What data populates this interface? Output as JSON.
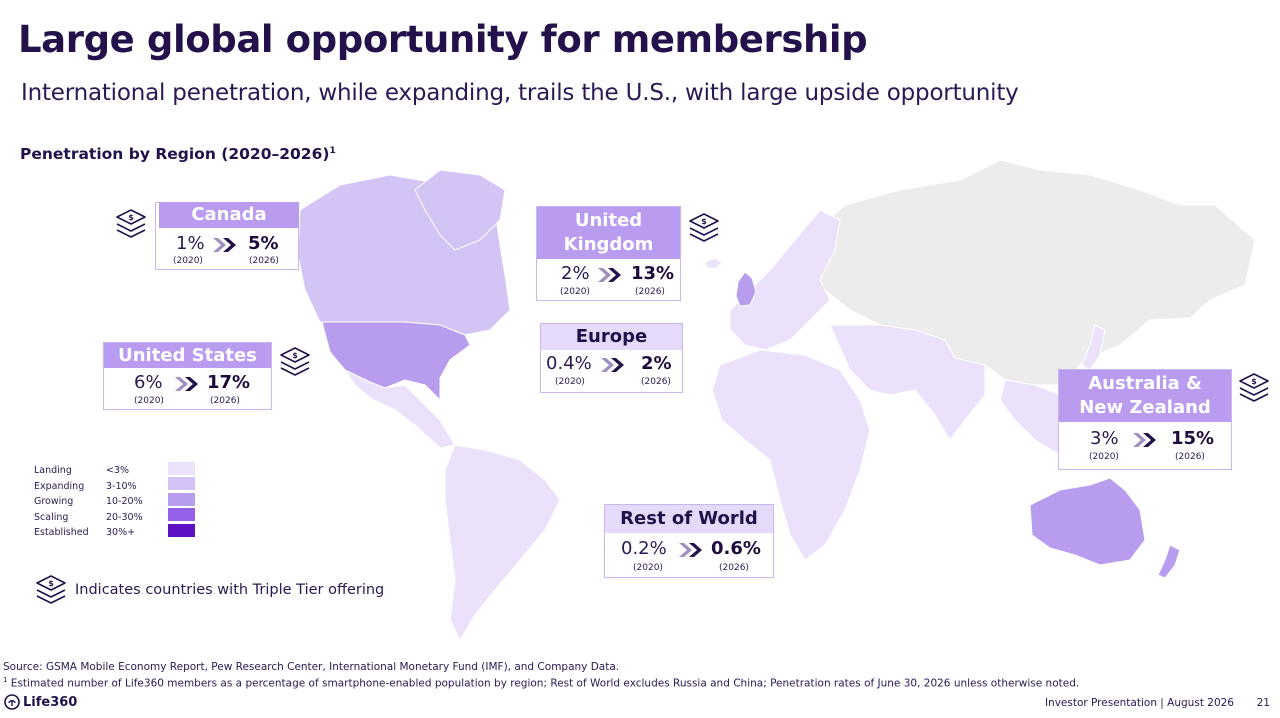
{
  "header": {
    "title": "Large global opportunity for membership",
    "subtitle": "International penetration, while expanding, trails the U.S., with large upside opportunity",
    "section_title": "Penetration by Region (2020–2026)",
    "section_title_sup": "1"
  },
  "regions": {
    "canada": {
      "name": "Canada",
      "start": "1%",
      "end": "5%",
      "start_year": "(2020)",
      "end_year": "(2026)"
    },
    "united_states": {
      "name": "United States",
      "start": "6%",
      "end": "17%",
      "start_year": "(2020)",
      "end_year": "(2026)"
    },
    "united_kingdom": {
      "name_line1": "United",
      "name_line2": "Kingdom",
      "start": "2%",
      "end": "13%",
      "start_year": "(2020)",
      "end_year": "(2026)"
    },
    "europe": {
      "name": "Europe",
      "start": "0.4%",
      "end": "2%",
      "start_year": "(2020)",
      "end_year": "(2026)"
    },
    "australia_nz": {
      "name_line1": "Australia &",
      "name_line2": "New Zealand",
      "start": "3%",
      "end": "15%",
      "start_year": "(2020)",
      "end_year": "(2026)"
    },
    "rest_of_world": {
      "name": "Rest of World",
      "start": "0.2%",
      "end": "0.6%",
      "start_year": "(2020)",
      "end_year": "(2026)"
    }
  },
  "legend": {
    "items": [
      {
        "label": "Landing",
        "range": "<3%",
        "color": "#ebe1fb"
      },
      {
        "label": "Expanding",
        "range": "3-10%",
        "color": "#d4c3f5"
      },
      {
        "label": "Growing",
        "range": "10-20%",
        "color": "#b89cee"
      },
      {
        "label": "Scaling",
        "range": "20-30%",
        "color": "#9561e8"
      },
      {
        "label": "Established",
        "range": "30%+",
        "color": "#5e10c4"
      }
    ],
    "triple_tier_note": "Indicates countries with Triple Tier offering",
    "triple_tier_icon": "stacked-layers-dollar-icon"
  },
  "footer": {
    "source": "Source: GSMA Mobile Economy Report, Pew Research Center, International Monetary Fund (IMF), and Company Data.",
    "footnote_marker": "1",
    "footnote": " Estimated number of Life360 members as a percentage of smartphone-enabled population by region; Rest of World excludes Russia and China; Penetration rates of June 30, 2026 unless otherwise noted.",
    "brand": "Life360",
    "presentation": "Investor Presentation  |  August 2026",
    "page_number": "21"
  },
  "colors": {
    "header_fill": "#b99cf0",
    "not_included": "#ececec",
    "landing": "#ebe1fb",
    "expanding": "#d4c3f5",
    "growing": "#b89cee"
  }
}
